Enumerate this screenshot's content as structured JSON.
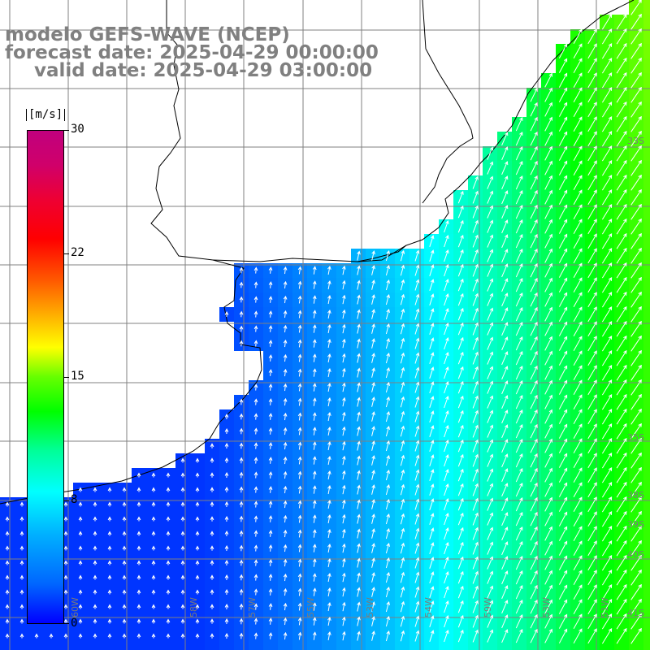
{
  "title": {
    "line1": "modelo GEFS-WAVE (NCEP)",
    "line2": "forecast date: 2025-04-29 00:00:00",
    "line3": "valid date: 2025-04-29 03:00:00"
  },
  "colorbar": {
    "unit": "[m/s]",
    "ticks": [
      "30",
      "22",
      "15",
      "8",
      "0"
    ],
    "tick_values": [
      30,
      22,
      15,
      8,
      0
    ],
    "colors": [
      "#0000ff",
      "#00ffff",
      "#00ff00",
      "#ffff00",
      "#ff0000",
      "#c0007e"
    ]
  },
  "lat_labels": [
    "33S",
    "35S",
    "38S",
    "39S",
    "40S",
    "41S"
  ],
  "lon_labels": [
    "60W",
    "58W",
    "57W",
    "55W",
    "53W",
    "54W",
    "59W",
    "53W",
    "51W"
  ],
  "colors": {
    "land": "#ffffff",
    "grid": "#808080",
    "coast": "#000000",
    "arrow": "#ffffff"
  }
}
